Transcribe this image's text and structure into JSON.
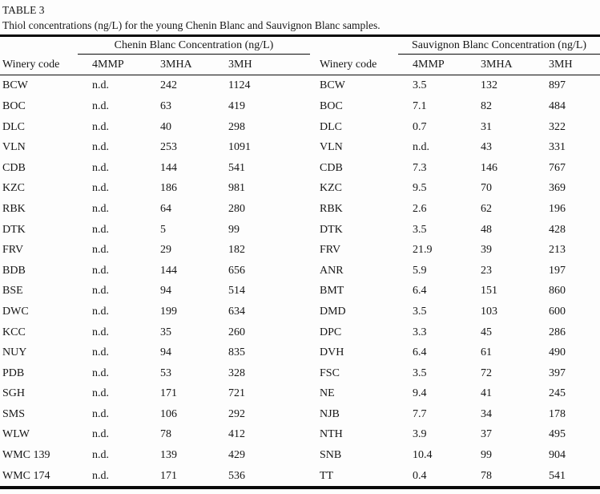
{
  "table": {
    "label": "TABLE 3",
    "caption": "Thiol concentrations (ng/L) for the young Chenin Blanc and Sauvignon Blanc samples.",
    "left": {
      "group_header": "Chenin Blanc Concentration (ng/L)",
      "columns": [
        "Winery code",
        "4MMP",
        "3MHA",
        "3MH"
      ],
      "rows": [
        [
          "BCW",
          "n.d.",
          "242",
          "1124"
        ],
        [
          "BOC",
          "n.d.",
          "63",
          "419"
        ],
        [
          "DLC",
          "n.d.",
          "40",
          "298"
        ],
        [
          "VLN",
          "n.d.",
          "253",
          "1091"
        ],
        [
          "CDB",
          "n.d.",
          "144",
          "541"
        ],
        [
          "KZC",
          "n.d.",
          "186",
          "981"
        ],
        [
          "RBK",
          "n.d.",
          "64",
          "280"
        ],
        [
          "DTK",
          "n.d.",
          "5",
          "99"
        ],
        [
          "FRV",
          "n.d.",
          "29",
          "182"
        ],
        [
          "BDB",
          "n.d.",
          "144",
          "656"
        ],
        [
          "BSE",
          "n.d.",
          "94",
          "514"
        ],
        [
          "DWC",
          "n.d.",
          "199",
          "634"
        ],
        [
          "KCC",
          "n.d.",
          "35",
          "260"
        ],
        [
          "NUY",
          "n.d.",
          "94",
          "835"
        ],
        [
          "PDB",
          "n.d.",
          "53",
          "328"
        ],
        [
          "SGH",
          "n.d.",
          "171",
          "721"
        ],
        [
          "SMS",
          "n.d.",
          "106",
          "292"
        ],
        [
          "WLW",
          "n.d.",
          "78",
          "412"
        ],
        [
          "WMC 139",
          "n.d.",
          "139",
          "429"
        ],
        [
          "WMC 174",
          "n.d.",
          "171",
          "536"
        ]
      ]
    },
    "right": {
      "group_header": "Sauvignon Blanc Concentration (ng/L)",
      "columns": [
        "Winery code",
        "4MMP",
        "3MHA",
        "3MH"
      ],
      "rows": [
        [
          "BCW",
          "3.5",
          "132",
          "897"
        ],
        [
          "BOC",
          "7.1",
          "82",
          "484"
        ],
        [
          "DLC",
          "0.7",
          "31",
          "322"
        ],
        [
          "VLN",
          "n.d.",
          "43",
          "331"
        ],
        [
          "CDB",
          "7.3",
          "146",
          "767"
        ],
        [
          "KZC",
          "9.5",
          "70",
          "369"
        ],
        [
          "RBK",
          "2.6",
          "62",
          "196"
        ],
        [
          "DTK",
          "3.5",
          "48",
          "428"
        ],
        [
          "FRV",
          "21.9",
          "39",
          "213"
        ],
        [
          "ANR",
          "5.9",
          "23",
          "197"
        ],
        [
          "BMT",
          "6.4",
          "151",
          "860"
        ],
        [
          "DMD",
          "3.5",
          "103",
          "600"
        ],
        [
          "DPC",
          "3.3",
          "45",
          "286"
        ],
        [
          "DVH",
          "6.4",
          "61",
          "490"
        ],
        [
          "FSC",
          "3.5",
          "72",
          "397"
        ],
        [
          "NE",
          "9.4",
          "41",
          "245"
        ],
        [
          "NJB",
          "7.7",
          "34",
          "178"
        ],
        [
          "NTH",
          "3.9",
          "37",
          "495"
        ],
        [
          "SNB",
          "10.4",
          "99",
          "904"
        ],
        [
          "TT",
          "0.4",
          "78",
          "541"
        ]
      ]
    }
  },
  "chart_data": {
    "type": "table",
    "title": "TABLE 3. Thiol concentrations (ng/L) for the young Chenin Blanc and Sauvignon Blanc samples.",
    "groups": [
      {
        "name": "Chenin Blanc Concentration (ng/L)",
        "columns": [
          "Winery code",
          "4MMP",
          "3MHA",
          "3MH"
        ],
        "rows": [
          [
            "BCW",
            "n.d.",
            242,
            1124
          ],
          [
            "BOC",
            "n.d.",
            63,
            419
          ],
          [
            "DLC",
            "n.d.",
            40,
            298
          ],
          [
            "VLN",
            "n.d.",
            253,
            1091
          ],
          [
            "CDB",
            "n.d.",
            144,
            541
          ],
          [
            "KZC",
            "n.d.",
            186,
            981
          ],
          [
            "RBK",
            "n.d.",
            64,
            280
          ],
          [
            "DTK",
            "n.d.",
            5,
            99
          ],
          [
            "FRV",
            "n.d.",
            29,
            182
          ],
          [
            "BDB",
            "n.d.",
            144,
            656
          ],
          [
            "BSE",
            "n.d.",
            94,
            514
          ],
          [
            "DWC",
            "n.d.",
            199,
            634
          ],
          [
            "KCC",
            "n.d.",
            35,
            260
          ],
          [
            "NUY",
            "n.d.",
            94,
            835
          ],
          [
            "PDB",
            "n.d.",
            53,
            328
          ],
          [
            "SGH",
            "n.d.",
            171,
            721
          ],
          [
            "SMS",
            "n.d.",
            106,
            292
          ],
          [
            "WLW",
            "n.d.",
            78,
            412
          ],
          [
            "WMC 139",
            "n.d.",
            139,
            429
          ],
          [
            "WMC 174",
            "n.d.",
            171,
            536
          ]
        ]
      },
      {
        "name": "Sauvignon Blanc Concentration (ng/L)",
        "columns": [
          "Winery code",
          "4MMP",
          "3MHA",
          "3MH"
        ],
        "rows": [
          [
            "BCW",
            3.5,
            132,
            897
          ],
          [
            "BOC",
            7.1,
            82,
            484
          ],
          [
            "DLC",
            0.7,
            31,
            322
          ],
          [
            "VLN",
            "n.d.",
            43,
            331
          ],
          [
            "CDB",
            7.3,
            146,
            767
          ],
          [
            "KZC",
            9.5,
            70,
            369
          ],
          [
            "RBK",
            2.6,
            62,
            196
          ],
          [
            "DTK",
            3.5,
            48,
            428
          ],
          [
            "FRV",
            21.9,
            39,
            213
          ],
          [
            "ANR",
            5.9,
            23,
            197
          ],
          [
            "BMT",
            6.4,
            151,
            860
          ],
          [
            "DMD",
            3.5,
            103,
            600
          ],
          [
            "DPC",
            3.3,
            45,
            286
          ],
          [
            "DVH",
            6.4,
            61,
            490
          ],
          [
            "FSC",
            3.5,
            72,
            397
          ],
          [
            "NE",
            9.4,
            41,
            245
          ],
          [
            "NJB",
            7.7,
            34,
            178
          ],
          [
            "NTH",
            3.9,
            37,
            495
          ],
          [
            "SNB",
            10.4,
            99,
            904
          ],
          [
            "TT",
            0.4,
            78,
            541
          ]
        ]
      }
    ],
    "colors": {
      "text": "#161616",
      "rules": "#0a0a0a",
      "background": "#fdfdfd"
    }
  }
}
